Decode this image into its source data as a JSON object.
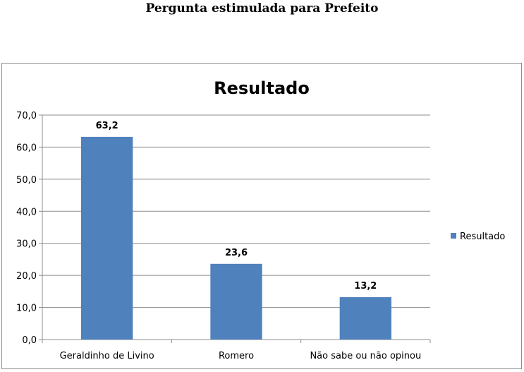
{
  "page": {
    "title": "Pergunta estimulada para Prefeito"
  },
  "chart_data": {
    "type": "bar",
    "title": "Resultado",
    "categories": [
      "Geraldinho de Livino",
      "Romero",
      "Não sabe ou não opinou"
    ],
    "series": [
      {
        "name": "Resultado",
        "values": [
          63.2,
          23.6,
          13.2
        ],
        "labels": [
          "63,2",
          "23,6",
          "13,2"
        ]
      }
    ],
    "ylim": [
      0,
      70
    ],
    "yticks": [
      0,
      10,
      20,
      30,
      40,
      50,
      60,
      70
    ],
    "ytick_labels": [
      "0,0",
      "10,0",
      "20,0",
      "30,0",
      "40,0",
      "50,0",
      "60,0",
      "70,0"
    ],
    "xlabel": "",
    "ylabel": "",
    "grid": true,
    "legend": "right",
    "bar_color": "#4f81bd"
  }
}
